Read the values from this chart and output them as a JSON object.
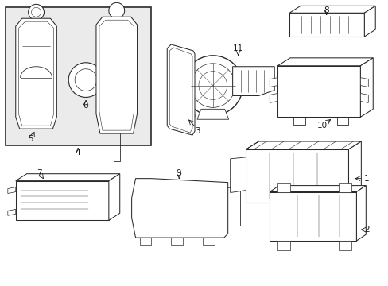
{
  "background_color": "#ffffff",
  "line_color": "#2a2a2a",
  "text_color": "#1a1a1a",
  "fig_width": 4.89,
  "fig_height": 3.6,
  "dpi": 100,
  "box_bg": "#ebebeb",
  "lw": 0.75
}
